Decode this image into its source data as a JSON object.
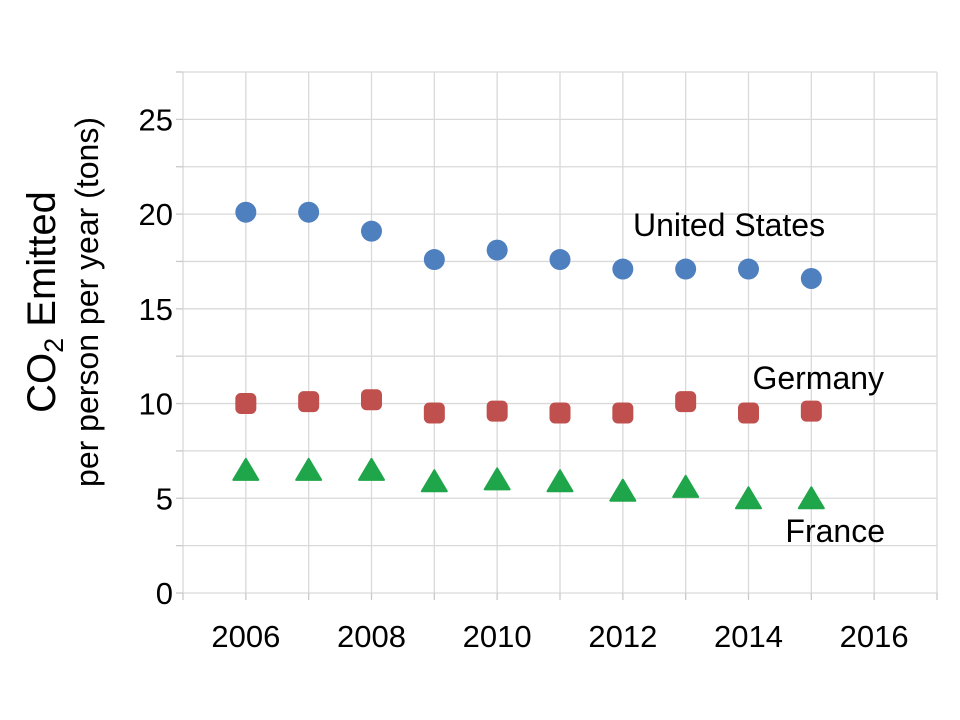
{
  "chart_data": {
    "type": "scatter",
    "title": "",
    "ylabel_line1": {
      "pre": "CO",
      "sub": "2",
      "post": " Emitted"
    },
    "ylabel_line2": "per person per year (tons)",
    "xlabel": "",
    "x": [
      2006,
      2007,
      2008,
      2009,
      2010,
      2011,
      2012,
      2013,
      2014,
      2015
    ],
    "series": [
      {
        "name": "United States",
        "marker": "circle",
        "color": "#4E7FBF",
        "values": [
          20.1,
          20.1,
          19.1,
          17.6,
          18.1,
          17.6,
          17.1,
          17.1,
          17.1,
          16.6
        ],
        "label": "United States",
        "label_at": {
          "x": 2013.69,
          "y": 19.42
        }
      },
      {
        "name": "Germany",
        "marker": "square",
        "color": "#C0504D",
        "values": [
          10.0,
          10.1,
          10.2,
          9.5,
          9.6,
          9.5,
          9.5,
          10.1,
          9.5,
          9.6
        ],
        "label": "Germany",
        "label_at": {
          "x": 2015.11,
          "y": 11.35
        }
      },
      {
        "name": "France",
        "marker": "triangle",
        "color": "#1FA54A",
        "values": [
          6.5,
          6.5,
          6.5,
          5.9,
          6.0,
          5.9,
          5.4,
          5.6,
          5.0,
          5.0
        ],
        "label": "France",
        "label_at": {
          "x": 2015.38,
          "y": 3.27
        }
      }
    ],
    "x_axis": {
      "min": 2005,
      "max": 2017,
      "gridline_step": 1,
      "tick_values": [
        2006,
        2008,
        2010,
        2012,
        2014,
        2016
      ],
      "tick_labels": [
        "2006",
        "2008",
        "2010",
        "2012",
        "2014",
        "2016"
      ]
    },
    "y_axis": {
      "min": 0,
      "max": 27.5,
      "gridline_step": 2.5,
      "tick_values": [
        0,
        5,
        10,
        15,
        20,
        25
      ],
      "tick_labels": [
        "0",
        "5",
        "10",
        "15",
        "20",
        "25"
      ]
    },
    "grid": true,
    "legend_position": "labels-next-to-series",
    "colors": {
      "gridline": "#d9d9d9",
      "tick": "#c9c9c9",
      "text": "#000000",
      "background": "#ffffff"
    }
  }
}
